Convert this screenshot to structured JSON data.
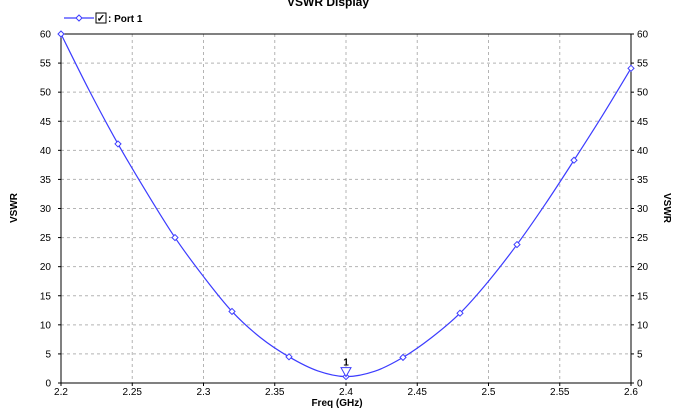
{
  "chart_data": {
    "type": "line",
    "title": "VSWR Display",
    "xlabel": "Freq (GHz)",
    "ylabel": "VSWR",
    "ylabel_right": "VSWR",
    "xlim": [
      2.2,
      2.6
    ],
    "ylim": [
      0,
      60
    ],
    "x_ticks": [
      2.2,
      2.25,
      2.3,
      2.35,
      2.4,
      2.45,
      2.5,
      2.55,
      2.6
    ],
    "x_tick_labels": [
      "2.2",
      "2.25",
      "2.3",
      "2.35",
      "2.4",
      "2.45",
      "2.5",
      "2.55",
      "2.6"
    ],
    "y_ticks": [
      0,
      5,
      10,
      15,
      20,
      25,
      30,
      35,
      40,
      45,
      50,
      55,
      60
    ],
    "y_tick_labels": [
      "0",
      "5",
      "10",
      "15",
      "20",
      "25",
      "30",
      "35",
      "40",
      "45",
      "50",
      "55",
      "60"
    ],
    "grid": true,
    "legend_position": "top-left",
    "series": [
      {
        "name": "Port 1",
        "color": "#3c3cff",
        "checked": true,
        "x": [
          2.2,
          2.22,
          2.24,
          2.26,
          2.28,
          2.3,
          2.32,
          2.34,
          2.36,
          2.38,
          2.4,
          2.42,
          2.44,
          2.46,
          2.48,
          2.5,
          2.52,
          2.54,
          2.56,
          2.58,
          2.6
        ],
        "y": [
          60,
          50.2,
          41.1,
          32.8,
          25,
          18.3,
          12.3,
          7.8,
          4.5,
          2.1,
          1.1,
          2,
          4.4,
          7.8,
          12,
          17.5,
          23.8,
          30.8,
          38.3,
          46,
          54.1
        ],
        "marker_x": [
          2.2,
          2.24,
          2.28,
          2.32,
          2.36,
          2.4,
          2.44,
          2.48,
          2.52,
          2.56,
          2.6
        ],
        "marker_y": [
          60,
          41.1,
          25,
          12.3,
          4.5,
          1.1,
          4.4,
          12,
          23.8,
          38.3,
          54.1
        ]
      }
    ],
    "markers": [
      {
        "label": "1",
        "x": 2.4,
        "y": 1.1
      }
    ]
  },
  "legend": {
    "label": ": Port 1",
    "checkbox_glyph": "✓"
  }
}
